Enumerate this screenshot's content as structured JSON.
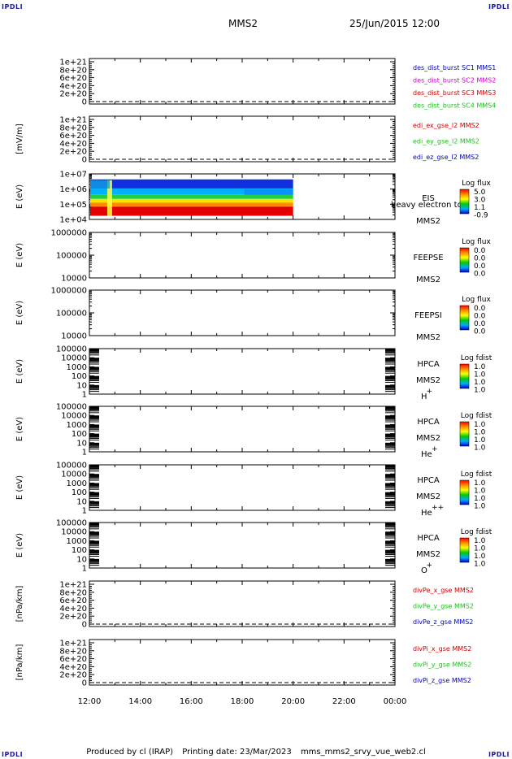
{
  "corners": {
    "tl": "IPDLI",
    "tr": "IPDLI",
    "bl": "IPDLI",
    "br": "IPDLI"
  },
  "header": {
    "mission": "MMS2",
    "datetime": "25/Jun/2015 12:00"
  },
  "footer": {
    "produced": "Produced by cl (IRAP)",
    "printing": "Printing date: 23/Mar/2023",
    "file": "mms_mms2_srvy_vue_web2.cl"
  },
  "colors": {
    "red": "#d00000",
    "magenta": "#d000d0",
    "green": "#20c020",
    "blue": "#0000c0"
  },
  "chart_data": {
    "type": "multi-panel",
    "x_ticks": [
      "12:00",
      "14:00",
      "16:00",
      "18:00",
      "20:00",
      "22:00",
      "00:00"
    ],
    "panels": [
      {
        "id": "des",
        "kind": "line",
        "ylabel": "",
        "yticks": [
          "1e+21",
          "8e+20",
          "6e+20",
          "4e+20",
          "2e+20",
          "0"
        ],
        "legend": [
          {
            "text": "des_dist_burst SC1 MMS1",
            "color": "blue"
          },
          {
            "text": "des_dist_burst SC2 MMS2",
            "color": "magenta"
          },
          {
            "text": "des_dist_burst SC3 MMS3",
            "color": "red"
          },
          {
            "text": "des_dist_burst SC4 MMS4",
            "color": "green"
          }
        ]
      },
      {
        "id": "edi",
        "kind": "line",
        "ylabel": "[mV/m]",
        "yticks": [
          "1e+21",
          "8e+20",
          "6e+20",
          "4e+20",
          "2e+20",
          "0"
        ],
        "legend": [
          {
            "text": "edi_ex_gse_l2 MMS2",
            "color": "red"
          },
          {
            "text": "edi_ey_gse_l2 MMS2",
            "color": "green"
          },
          {
            "text": "edi_ez_gse_l2 MMS2",
            "color": "blue"
          }
        ]
      },
      {
        "id": "eis",
        "kind": "spectrogram",
        "ylabel": "E (eV)",
        "yticks": [
          "1e+07",
          "1e+06",
          "1e+05",
          "1e+04"
        ],
        "side": [
          "EIS",
          "MMS2"
        ],
        "overlay": "heavy electron to",
        "cb_title": "Log flux",
        "cb_values": [
          "5.0",
          "3.0",
          "1.1",
          "-0.9"
        ]
      },
      {
        "id": "feepse",
        "kind": "spectrogram",
        "ylabel": "E (eV)",
        "yticks": [
          "1000000",
          "100000",
          "10000"
        ],
        "side": [
          "FEEPSE",
          "MMS2"
        ],
        "cb_title": "Log flux",
        "cb_values": [
          "0.0",
          "0.0",
          "0.0",
          "0.0"
        ]
      },
      {
        "id": "feepsi",
        "kind": "spectrogram",
        "ylabel": "E (eV)",
        "yticks": [
          "1000000",
          "100000",
          "10000"
        ],
        "side": [
          "FEEPSI",
          "MMS2"
        ],
        "cb_title": "Log flux",
        "cb_values": [
          "0.0",
          "0.0",
          "0.0",
          "0.0"
        ]
      },
      {
        "id": "hpca_h",
        "kind": "spectrogram",
        "ylabel": "E (eV)",
        "yticks": [
          "100000",
          "10000",
          "1000",
          "100",
          "10",
          "1"
        ],
        "side": [
          "HPCA",
          "MMS2"
        ],
        "species": "H",
        "charge": "+",
        "cb_title": "Log fdist",
        "cb_values": [
          "1.0",
          "1.0",
          "1.0",
          "1.0"
        ]
      },
      {
        "id": "hpca_he",
        "kind": "spectrogram",
        "ylabel": "E (eV)",
        "yticks": [
          "100000",
          "10000",
          "1000",
          "100",
          "10",
          "1"
        ],
        "side": [
          "HPCA",
          "MMS2"
        ],
        "species": "He",
        "charge": "+",
        "cb_title": "Log fdist",
        "cb_values": [
          "1.0",
          "1.0",
          "1.0",
          "1.0"
        ]
      },
      {
        "id": "hpca_he2",
        "kind": "spectrogram",
        "ylabel": "E (eV)",
        "yticks": [
          "100000",
          "10000",
          "1000",
          "100",
          "10",
          "1"
        ],
        "side": [
          "HPCA",
          "MMS2"
        ],
        "species": "He",
        "charge": "++",
        "cb_title": "Log fdist",
        "cb_values": [
          "1.0",
          "1.0",
          "1.0",
          "1.0"
        ]
      },
      {
        "id": "hpca_o",
        "kind": "spectrogram",
        "ylabel": "E (eV)",
        "yticks": [
          "100000",
          "10000",
          "1000",
          "100",
          "10",
          "1"
        ],
        "side": [
          "HPCA",
          "MMS2"
        ],
        "species": "O",
        "charge": "+",
        "cb_title": "Log fdist",
        "cb_values": [
          "1.0",
          "1.0",
          "1.0",
          "1.0"
        ]
      },
      {
        "id": "divpe",
        "kind": "line",
        "ylabel": "[nPa/km]",
        "yticks": [
          "1e+21",
          "8e+20",
          "6e+20",
          "4e+20",
          "2e+20",
          "0"
        ],
        "legend": [
          {
            "text": "divPe_x_gse MMS2",
            "color": "red"
          },
          {
            "text": "divPe_y_gse MMS2",
            "color": "green"
          },
          {
            "text": "divPe_z_gse MMS2",
            "color": "blue"
          }
        ]
      },
      {
        "id": "divpi",
        "kind": "line",
        "ylabel": "[nPa/km]",
        "yticks": [
          "1e+21",
          "8e+20",
          "6e+20",
          "4e+20",
          "2e+20",
          "0"
        ],
        "legend": [
          {
            "text": "divPi_x_gse MMS2",
            "color": "red"
          },
          {
            "text": "divPi_y_gse MMS2",
            "color": "green"
          },
          {
            "text": "divPi_z_gse MMS2",
            "color": "blue"
          }
        ]
      }
    ]
  }
}
